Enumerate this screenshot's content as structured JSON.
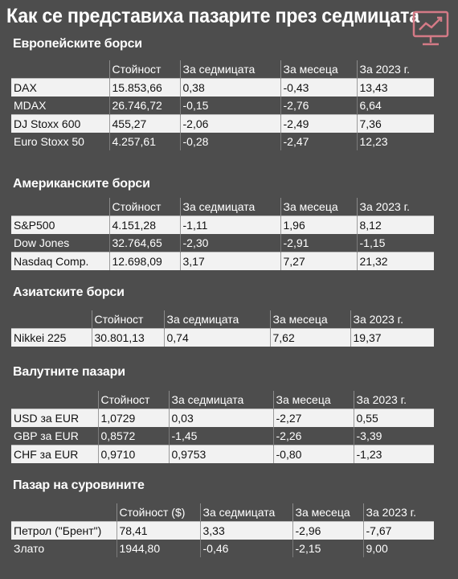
{
  "title": "Как се представиха пазарите през седмицата",
  "colors": {
    "background": "#4d4d4d",
    "row_light": "#f2f2f2",
    "text_light": "#ffffff",
    "text_dark": "#111111",
    "logo": "#d47a86"
  },
  "logo_icon": "chart-monitor-icon",
  "sections": [
    {
      "title": "Европейските борси",
      "headers": [
        "",
        "Стойност",
        "За седмицата",
        "За месеца",
        "За 2023 г."
      ],
      "rows": [
        [
          "DAX",
          "15.853,66",
          "0,38",
          "-0,43",
          "13,43"
        ],
        [
          "MDAX",
          "26.746,72",
          "-0,15",
          "-2,76",
          "6,64"
        ],
        [
          "DJ Stoxx 600",
          "455,27",
          "-2,06",
          "-2,49",
          "7,36"
        ],
        [
          "Euro Stoxx 50",
          "4.257,61",
          "-0,28",
          "-2,47",
          "12,23"
        ]
      ]
    },
    {
      "title": "Американските борси",
      "headers": [
        "",
        "Стойност",
        "За седмицата",
        "За месеца",
        "За 2023 г."
      ],
      "rows": [
        [
          "S&P500",
          "4.151,28",
          "-1,11",
          "1,96",
          "8,12"
        ],
        [
          "Dow Jones",
          "32.764,65",
          "-2,30",
          "-2,91",
          "-1,15"
        ],
        [
          "Nasdaq Comp.",
          "12.698,09",
          "3,17",
          "7,27",
          "21,32"
        ]
      ]
    },
    {
      "title": "Азиатските борси",
      "headers": [
        "",
        "Стойност",
        "За седмицата",
        "За месеца",
        "За 2023 г."
      ],
      "rows": [
        [
          "Nikkei 225",
          "30.801,13",
          "0,74",
          "7,62",
          "19,37"
        ]
      ]
    },
    {
      "title": "Валутните пазари",
      "headers": [
        "",
        "Стойност",
        "За седмицата",
        "За месеца",
        "За 2023 г."
      ],
      "rows": [
        [
          "USD за EUR",
          "1,0729",
          "0,03",
          "-2,27",
          "0,55"
        ],
        [
          "GBP за EUR",
          "0,8572",
          "-1,45",
          "-2,26",
          "-3,39"
        ],
        [
          "CHF за EUR",
          "0,9710",
          "0,9753",
          "-0,80",
          "-1,23"
        ]
      ]
    },
    {
      "title": "Пазар на суровините",
      "headers": [
        "",
        "Стойност ($)",
        "За седмицата",
        "За месеца",
        "За 2023 г."
      ],
      "rows": [
        [
          "Петрол (\"Брент\")",
          "78,41",
          "3,33",
          "-2,96",
          "-7,67"
        ],
        [
          "Злато",
          "1944,80",
          "-0,46",
          "-2,15",
          "9,00"
        ]
      ]
    }
  ]
}
